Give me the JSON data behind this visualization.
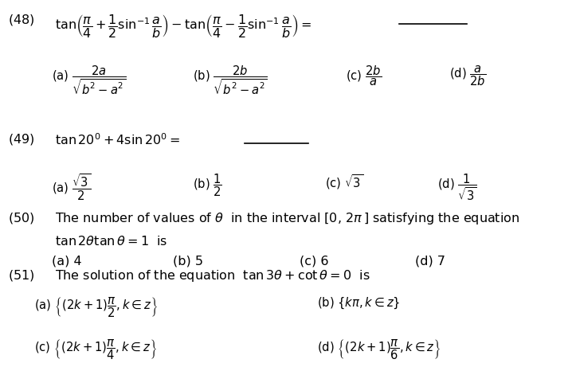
{
  "bg_color": "#ffffff",
  "figsize": [
    7.23,
    4.61
  ],
  "dpi": 100,
  "fs": 11.5
}
